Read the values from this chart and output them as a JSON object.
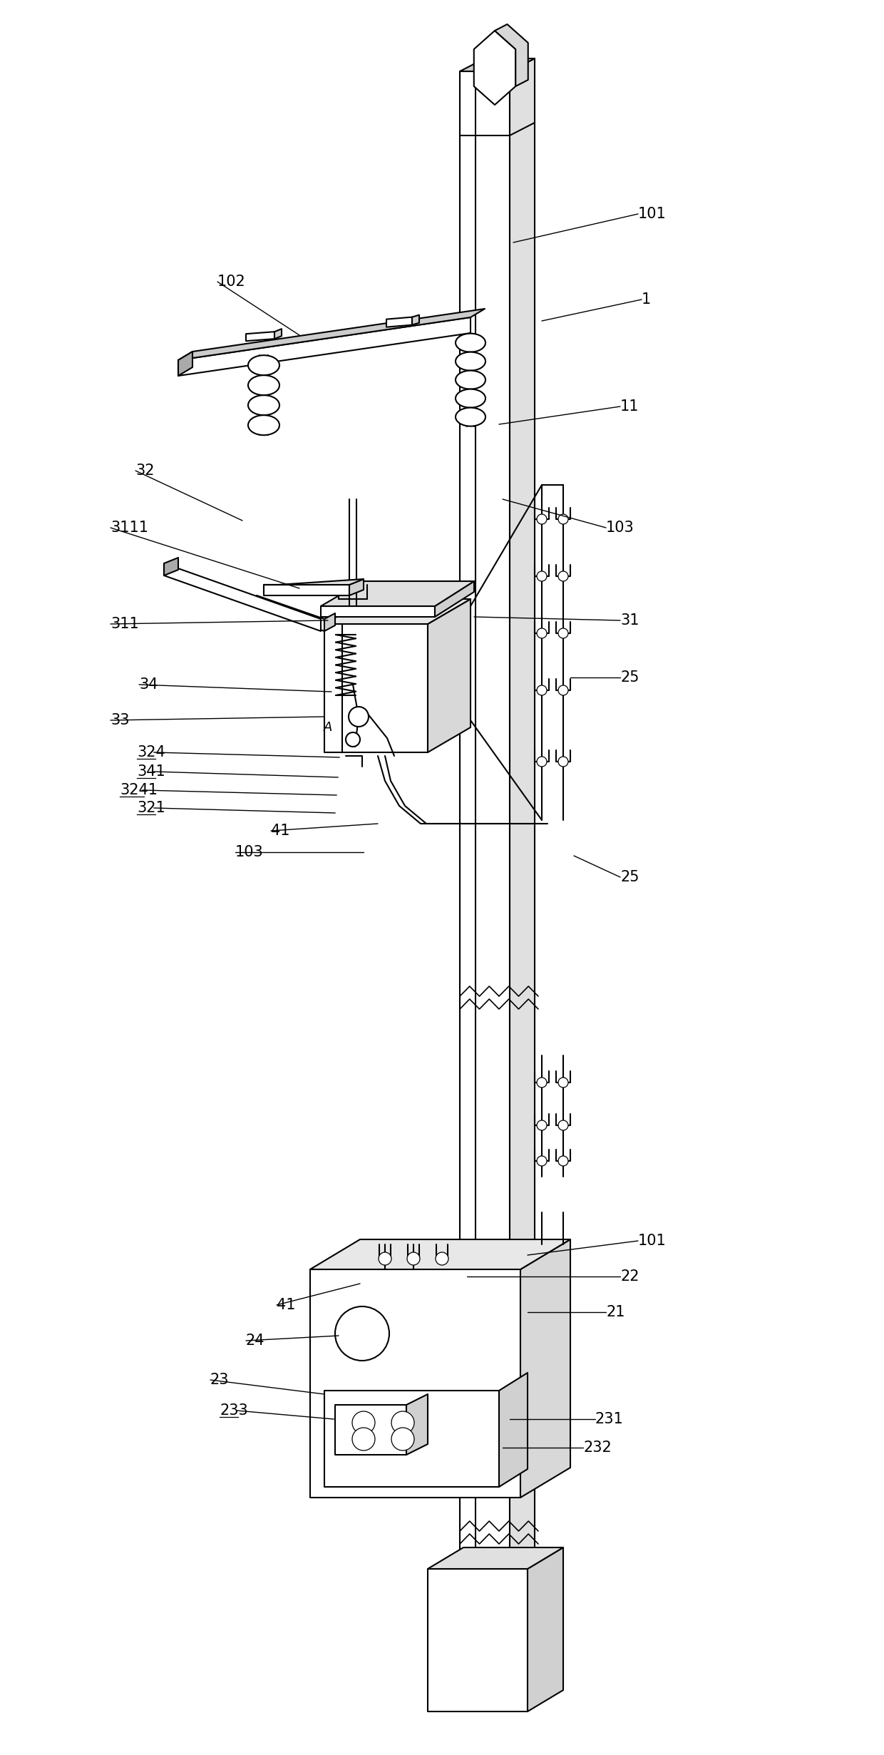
{
  "background_color": "#ffffff",
  "line_color": "#000000",
  "lw": 1.5,
  "lw_thin": 0.9,
  "lw_leader": 1.0,
  "fs": 14
}
